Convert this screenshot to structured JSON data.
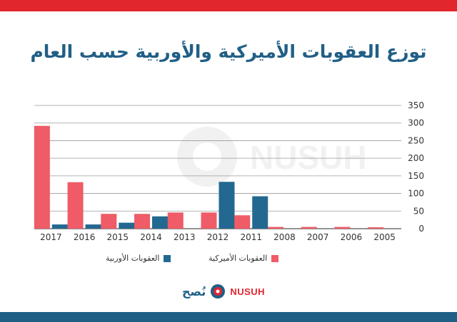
{
  "title": "توزع العقوبات الأميركية والأوربية حسب العام",
  "brand": {
    "arabic": "نُصح",
    "latin": "NUSUH"
  },
  "colors": {
    "american": "#ef5b67",
    "european": "#236890",
    "accent_red": "#e1262e",
    "accent_blue": "#1f5f86",
    "grid": "#9a9a9a",
    "axis_text": "#333333"
  },
  "chart_data": {
    "type": "bar",
    "categories": [
      "2017",
      "2016",
      "2015",
      "2014",
      "2013",
      "2012",
      "2011",
      "2008",
      "2007",
      "2006",
      "2005"
    ],
    "series": [
      {
        "name": "العقوبات الأميركية",
        "values": [
          292,
          132,
          42,
          42,
          46,
          46,
          38,
          5,
          5,
          5,
          4
        ]
      },
      {
        "name": "العقوبات الأوربية",
        "values": [
          12,
          12,
          17,
          35,
          0,
          133,
          92,
          0,
          0,
          0,
          0
        ]
      }
    ],
    "yticks": [
      0,
      50,
      100,
      150,
      200,
      250,
      300,
      350
    ],
    "ylim": [
      0,
      350
    ],
    "grid": true,
    "legend_position": "bottom",
    "xlabel": "",
    "ylabel": ""
  }
}
